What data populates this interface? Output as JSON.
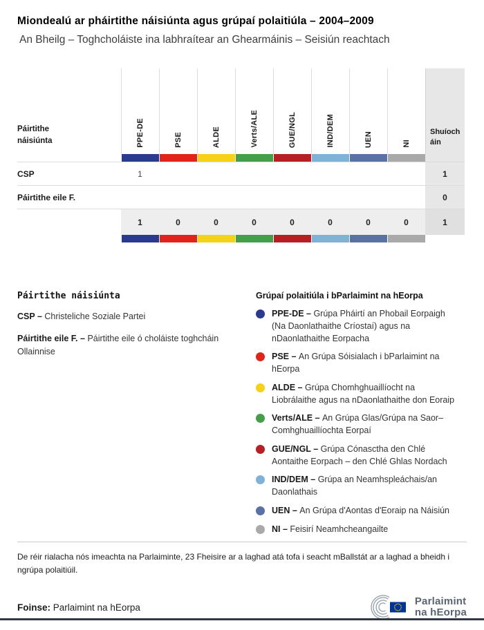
{
  "page": {
    "title": "Miondealú ar pháirtithe náisiúnta agus grúpaí polaitiúla – 2004–2009",
    "subtitle": "An Bheilg – Toghcholáiste ina labhraítear an Ghearmáinis – Seisiún reachtach"
  },
  "table": {
    "row_header_label": "Páirtithe náisiúnta",
    "seats_header": "Shuíocháin",
    "groups": [
      {
        "code": "PPE-DE",
        "color": "#2a3b8f"
      },
      {
        "code": "PSE",
        "color": "#e2231a"
      },
      {
        "code": "ALDE",
        "color": "#f7d117"
      },
      {
        "code": "Verts/ALE",
        "color": "#44a048"
      },
      {
        "code": "GUE/NGL",
        "color": "#b61f24"
      },
      {
        "code": "IND/DEM",
        "color": "#7fb2d7"
      },
      {
        "code": "UEN",
        "color": "#5a71a6"
      },
      {
        "code": "NI",
        "color": "#a9a9a9"
      }
    ],
    "rows": [
      {
        "label": "CSP",
        "values": [
          "1",
          "",
          "",
          "",
          "",
          "",
          "",
          ""
        ],
        "seats": "1"
      },
      {
        "label": "Páirtithe eile F.",
        "values": [
          "",
          "",
          "",
          "",
          "",
          "",
          "",
          ""
        ],
        "seats": "0"
      }
    ],
    "totals": {
      "values": [
        "1",
        "0",
        "0",
        "0",
        "0",
        "0",
        "0",
        "0"
      ],
      "seats": "1"
    }
  },
  "legend_left": {
    "title": "Páirtithe náisiúnta",
    "items": [
      {
        "code": "CSP –",
        "text": "Christeliche Soziale Partei"
      },
      {
        "code": "Páirtithe eile F. –",
        "text": "Páirtithe eile ó choláiste toghcháin Ollainnise"
      }
    ]
  },
  "legend_right": {
    "title": "Grúpaí polaitiúla i bParlaimint na hEorpa",
    "items": [
      {
        "code": "PPE-DE –",
        "color": "#2a3b8f",
        "text": "Grúpa Pháirtí an Phobail Eorpaigh (Na Daonlathaithe Críostaí) agus na nDaonlathaithe Eorpacha"
      },
      {
        "code": "PSE –",
        "color": "#e2231a",
        "text": "An Grúpa Sóisialach i bParlaimint na hEorpa"
      },
      {
        "code": "ALDE –",
        "color": "#f7d117",
        "text": "Grúpa Chomhghuaillíocht na Liobrálaithe agus na nDaonlathaithe don Eoraip"
      },
      {
        "code": "Verts/ALE –",
        "color": "#44a048",
        "text": "An Grúpa Glas/Grúpa na Saor–Comhghuaillíochta Eorpaí"
      },
      {
        "code": "GUE/NGL –",
        "color": "#b61f24",
        "text": "Grúpa Cónasctha den Chlé Aontaithe Eorpach – den Chlé Ghlas Nordach"
      },
      {
        "code": "IND/DEM –",
        "color": "#7fb2d7",
        "text": "Grúpa an Neamhspleáchais/an Daonlathais"
      },
      {
        "code": "UEN –",
        "color": "#5a71a6",
        "text": "An Grúpa d'Aontas d'Eoraip na Náisiún"
      },
      {
        "code": "NI –",
        "color": "#a9a9a9",
        "text": "Feisirí Neamhcheangailte"
      }
    ]
  },
  "footnote": "De réir rialacha nós imeachta na Parlaiminte, 23 Fheisire ar a laghad atá tofa i seacht mBallstát ar a laghad a bheidh i ngrúpa polaitiúil.",
  "footer": {
    "source_label": "Foinse:",
    "source_text": "Parlaimint na hEorpa",
    "logo_line1": "Parlaimint",
    "logo_line2": "na hEorpa"
  },
  "chart_data": {
    "type": "table",
    "title": "Miondealú ar pháirtithe náisiúnta agus grúpaí polaitiúla – 2004–2009",
    "subtitle": "An Bheilg – Toghcholáiste ina labhraítear an Ghearmáinis – Seisiún reachtach",
    "columns": [
      "Páirtithe náisiúnta",
      "PPE-DE",
      "PSE",
      "ALDE",
      "Verts/ALE",
      "GUE/NGL",
      "IND/DEM",
      "UEN",
      "NI",
      "Shuíocháin"
    ],
    "rows": [
      [
        "CSP",
        1,
        null,
        null,
        null,
        null,
        null,
        null,
        null,
        1
      ],
      [
        "Páirtithe eile F.",
        null,
        null,
        null,
        null,
        null,
        null,
        null,
        null,
        0
      ],
      [
        "",
        1,
        0,
        0,
        0,
        0,
        0,
        0,
        0,
        1
      ]
    ],
    "group_colors": {
      "PPE-DE": "#2a3b8f",
      "PSE": "#e2231a",
      "ALDE": "#f7d117",
      "Verts/ALE": "#44a048",
      "GUE/NGL": "#b61f24",
      "IND/DEM": "#7fb2d7",
      "UEN": "#5a71a6",
      "NI": "#a9a9a9"
    }
  }
}
